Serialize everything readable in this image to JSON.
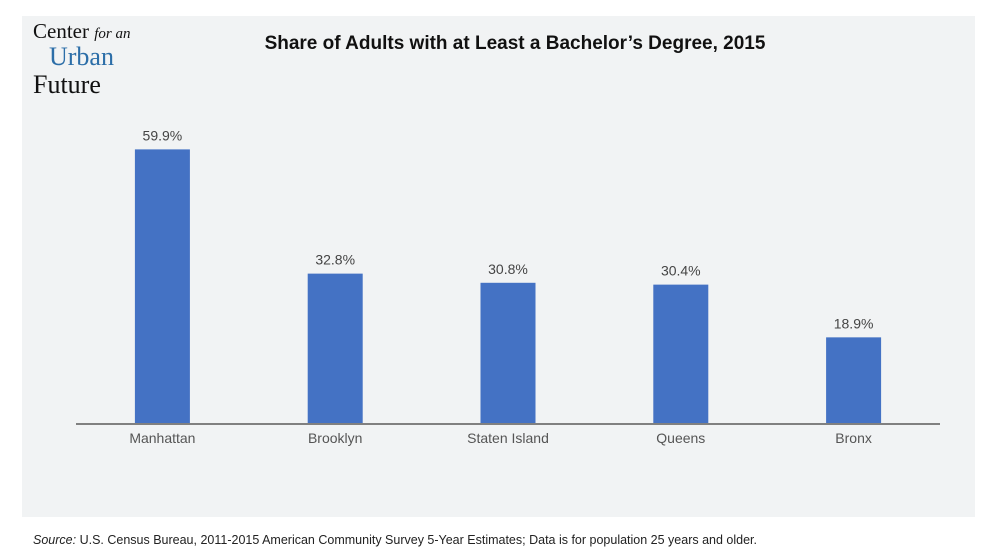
{
  "logo": {
    "line1": "Center",
    "line1_small": "for an",
    "line2": "Urban",
    "line3": "Future"
  },
  "chart_data": {
    "type": "bar",
    "title": "Share of Adults with at Least a Bachelor’s Degree, 2015",
    "categories": [
      "Manhattan",
      "Brooklyn",
      "Staten Island",
      "Queens",
      "Bronx"
    ],
    "values": [
      59.9,
      32.8,
      30.8,
      30.4,
      18.9
    ],
    "data_labels": [
      "59.9%",
      "32.8%",
      "30.8%",
      "30.4%",
      "18.9%"
    ],
    "xlabel": "",
    "ylabel": "",
    "ylim": [
      0,
      65
    ],
    "grid": false,
    "bar_color": "#4472c4"
  },
  "source": {
    "label": "Source:",
    "text": " U.S. Census Bureau, 2011-2015 American Community Survey 5-Year Estimates; Data is for population 25 years and older."
  }
}
